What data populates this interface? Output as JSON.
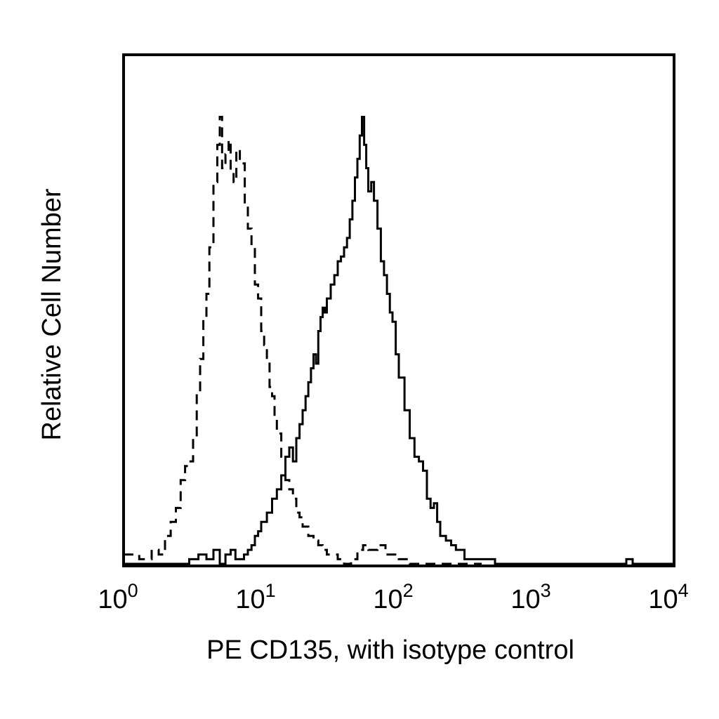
{
  "chart_data": {
    "type": "line",
    "title": "",
    "xlabel": "PE CD135, with isotype control",
    "ylabel": "Relative Cell Number",
    "xscale": "log",
    "xlim": [
      1,
      10000
    ],
    "ylim": [
      0,
      100
    ],
    "grid": false,
    "legend": "none",
    "xticks": [
      {
        "value": 1,
        "base": "10",
        "exp": "0"
      },
      {
        "value": 10,
        "base": "10",
        "exp": "1"
      },
      {
        "value": 100,
        "base": "10",
        "exp": "2"
      },
      {
        "value": 1000,
        "base": "10",
        "exp": "3"
      },
      {
        "value": 10000,
        "base": "10",
        "exp": "4"
      }
    ],
    "series": [
      {
        "style": "dashed",
        "color": "#000000",
        "x": [
          1.0,
          1.3,
          1.6,
          1.8,
          2.0,
          2.2,
          2.4,
          2.6,
          2.8,
          3.0,
          3.2,
          3.4,
          3.6,
          3.8,
          4.0,
          4.2,
          4.5,
          4.8,
          5.0,
          5.2,
          5.5,
          5.8,
          6.0,
          6.3,
          6.6,
          7.0,
          7.3,
          7.6,
          8.0,
          8.5,
          9.0,
          9.5,
          10.0,
          10.5,
          11.0,
          11.5,
          12.0,
          12.5,
          13.0,
          14.0,
          15.0,
          16.0,
          17.0,
          18.0,
          19.0,
          20.0,
          22.0,
          24.0,
          26.0,
          28.0,
          30.0,
          33.0,
          36.0,
          40.0,
          45.0,
          50.0,
          55.0,
          60.0,
          70.0,
          80.0,
          100.0,
          120.0,
          150.0,
          180.0,
          220.0,
          260.0,
          300.0,
          400.0
        ],
        "y": [
          2,
          1,
          3,
          2,
          6,
          9,
          12,
          18,
          21,
          22,
          27,
          37,
          44,
          53,
          58,
          68,
          82,
          90,
          96,
          85,
          88,
          91,
          84,
          82,
          89,
          87,
          86,
          77,
          72,
          68,
          60,
          57,
          50,
          47,
          43,
          38,
          36,
          32,
          28,
          23,
          18,
          16,
          14,
          11,
          10,
          8,
          6,
          5,
          4,
          3,
          2,
          2,
          1,
          0,
          1,
          3,
          4,
          3,
          4,
          2,
          1,
          0,
          0,
          0,
          0,
          0,
          0,
          0
        ]
      },
      {
        "style": "solid",
        "color": "#000000",
        "x": [
          1.0,
          2.5,
          3.0,
          3.5,
          4.0,
          4.5,
          5.0,
          5.5,
          6.0,
          6.5,
          7.0,
          7.5,
          8.0,
          8.5,
          9.0,
          9.5,
          10.0,
          11.0,
          12.0,
          13.0,
          14.0,
          15.0,
          16.0,
          17.0,
          18.0,
          19.0,
          20.0,
          21.0,
          22.0,
          23.0,
          24.0,
          25.0,
          26.0,
          27.0,
          28.0,
          29.0,
          30.0,
          32.0,
          34.0,
          36.0,
          38.0,
          40.0,
          42.0,
          44.0,
          46.0,
          48.0,
          50.0,
          52.0,
          54.0,
          56.0,
          58.0,
          60.0,
          63.0,
          66.0,
          70.0,
          74.0,
          78.0,
          82.0,
          86.0,
          90.0,
          95.0,
          100.0,
          110.0,
          120.0,
          130.0,
          140.0,
          150.0,
          160.0,
          170.0,
          180.0,
          190.0,
          200.0,
          220.0,
          240.0,
          260.0,
          280.0,
          300.0,
          500.0,
          1000.0,
          2000.0,
          4000.0,
          4500.0,
          5000.0,
          10000.0
        ],
        "y": [
          0,
          0,
          1,
          2,
          1,
          3,
          0,
          2,
          3,
          1,
          1,
          2,
          3,
          4,
          6,
          7,
          9,
          11,
          14,
          16,
          19,
          23,
          25,
          22,
          27,
          30,
          33,
          36,
          39,
          42,
          45,
          43,
          50,
          53,
          55,
          54,
          57,
          60,
          62,
          65,
          66,
          68,
          70,
          74,
          78,
          83,
          87,
          92,
          96,
          90,
          85,
          80,
          82,
          78,
          72,
          65,
          62,
          58,
          54,
          52,
          45,
          40,
          33,
          27,
          23,
          22,
          20,
          14,
          12,
          13,
          9,
          6,
          5,
          4,
          3,
          3,
          1,
          0,
          0,
          0,
          0,
          1,
          0,
          0
        ]
      }
    ]
  }
}
